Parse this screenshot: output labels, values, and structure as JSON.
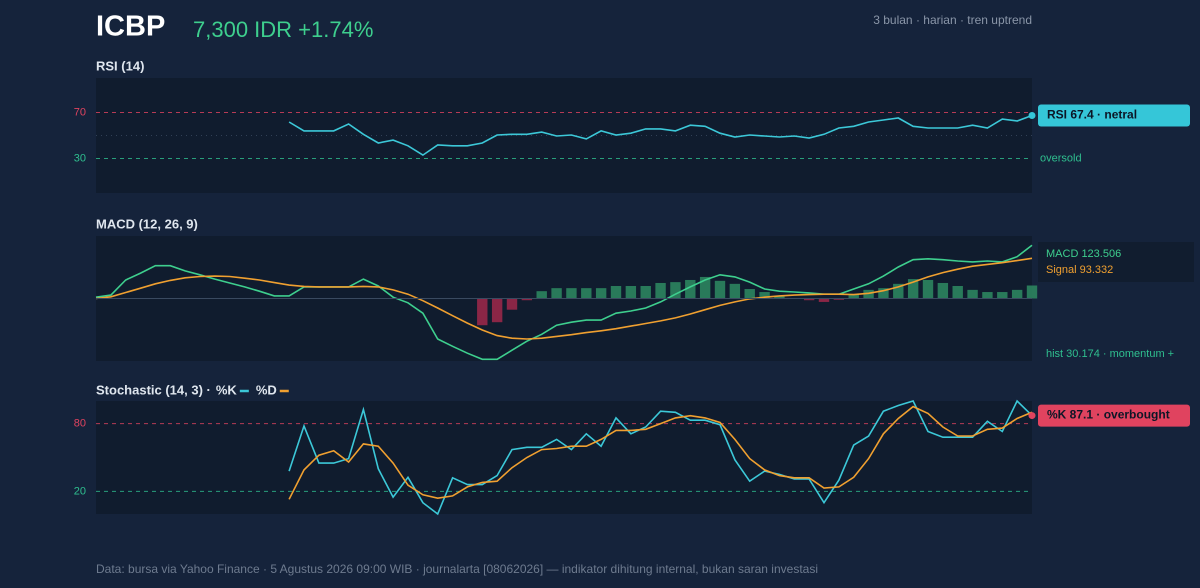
{
  "header": {
    "ticker": "ICBP",
    "price": "7,300 IDR +1.74%",
    "meta": "3 bulan · harian · tren uptrend"
  },
  "footer": "Data: bursa via Yahoo Finance · 5 Agustus 2026 09:00 WIB · journalarta [08062026] — indikator dihitung internal, bukan saran investasi",
  "chart_data": [
    {
      "type": "line",
      "title": "RSI (14)",
      "ylim": [
        0,
        100
      ],
      "yticks": [
        30,
        70
      ],
      "ytick_colors": [
        "#2fbf8f",
        "#e0435f"
      ],
      "reference_lines": [
        {
          "value": 70,
          "color": "#e0435f",
          "dash": "4 4"
        },
        {
          "value": 50,
          "color": "#3a4a60",
          "dash": "1 4"
        },
        {
          "value": 30,
          "color": "#2fbf8f",
          "dash": "4 4"
        }
      ],
      "annotation": {
        "text": "oversold",
        "value": 30,
        "color": "#2fbf8f"
      },
      "badge": {
        "text": "RSI 67.4 · netral",
        "color": "#35c6d8"
      },
      "series": [
        {
          "name": "RSI",
          "color": "#3cc8d8",
          "values": [
            null,
            null,
            null,
            null,
            null,
            null,
            null,
            null,
            null,
            null,
            null,
            null,
            null,
            61.7,
            54,
            54,
            54,
            60,
            51,
            43.5,
            46,
            41,
            33,
            41.7,
            41,
            41,
            43.5,
            50.4,
            51,
            51,
            53,
            49.6,
            50.4,
            47,
            54,
            50.4,
            52,
            55.7,
            55.7,
            54,
            59,
            58,
            52,
            48.7,
            50.4,
            49.6,
            48.7,
            49.6,
            47.8,
            51,
            56.5,
            58,
            61.7,
            63.5,
            65.2,
            58,
            56.5,
            56.5,
            56.5,
            59,
            56.5,
            64.3,
            62.6,
            67.4
          ]
        }
      ]
    },
    {
      "type": "line",
      "title": "MACD (12, 26, 9)",
      "ylim": [
        -145,
        145
      ],
      "info_box": [
        "MACD 123.506",
        "Signal 93.332"
      ],
      "note": {
        "text": "hist 30.174 · momentum +",
        "color": "#2fbf8f"
      },
      "positive_color": "#2e8b62",
      "negative_color": "#a0284a",
      "series": [
        {
          "name": "Histogram",
          "type": "bar",
          "values": [
            null,
            null,
            null,
            null,
            null,
            null,
            null,
            null,
            null,
            null,
            null,
            null,
            null,
            null,
            null,
            null,
            null,
            null,
            null,
            null,
            null,
            null,
            null,
            null,
            null,
            null,
            -62,
            -55,
            -26,
            -4,
            17,
            24,
            24,
            24,
            24,
            29,
            29,
            29,
            36,
            38,
            43,
            50,
            41,
            34,
            22,
            15,
            6,
            1,
            -4,
            -8,
            -3,
            10,
            20,
            24,
            34,
            45,
            43,
            36,
            29,
            20,
            15,
            15,
            20,
            30.174
          ]
        },
        {
          "name": "MACD",
          "color": "#3ecf8e",
          "values": [
            3,
            8,
            43,
            59,
            76,
            76,
            64,
            55,
            45,
            36,
            27,
            17,
            6,
            6,
            27,
            27,
            27,
            27,
            45,
            29,
            3,
            -10,
            -34,
            -94,
            -111,
            -127,
            -141,
            -141,
            -120,
            -99,
            -83,
            -62,
            -55,
            -50,
            -50,
            -34,
            -29,
            -22,
            -8,
            10,
            27,
            43,
            55,
            50,
            38,
            22,
            17,
            15,
            13,
            10,
            10,
            22,
            34,
            52,
            73,
            90,
            92,
            90,
            87,
            85,
            87,
            85,
            97,
            123.506
          ]
        },
        {
          "name": "Signal",
          "color": "#f0a030",
          "values": [
            0,
            4,
            14,
            24,
            34,
            42,
            48,
            51,
            52,
            51,
            47,
            43,
            37,
            31,
            28,
            27,
            27,
            27,
            28,
            27,
            20,
            10,
            -5,
            -22,
            -40,
            -57,
            -73,
            -86,
            -92,
            -94,
            -92,
            -88,
            -84,
            -79,
            -75,
            -70,
            -64,
            -58,
            -52,
            -45,
            -36,
            -26,
            -16,
            -8,
            -1,
            3,
            6,
            8,
            9,
            10,
            10,
            9,
            12,
            18,
            27,
            38,
            50,
            60,
            68,
            75,
            79,
            83,
            88,
            93.332
          ]
        }
      ]
    },
    {
      "type": "line",
      "title": "Stochastic (14, 3) ·",
      "ylim": [
        0,
        100
      ],
      "yticks": [
        20,
        80
      ],
      "ytick_colors": [
        "#2fbf8f",
        "#e0435f"
      ],
      "legend": "inline",
      "reference_lines": [
        {
          "value": 80,
          "color": "#e0435f",
          "dash": "4 4"
        },
        {
          "value": 20,
          "color": "#2fbf8f",
          "dash": "4 4"
        }
      ],
      "badge": {
        "text": "%K 87.1 · overbought",
        "color": "#e0435f"
      },
      "series": [
        {
          "name": "%K",
          "color": "#3cc8d8",
          "values": [
            null,
            null,
            null,
            null,
            null,
            null,
            null,
            null,
            null,
            null,
            null,
            null,
            null,
            38,
            78,
            45,
            45,
            49,
            92.5,
            40,
            15,
            32.5,
            10,
            0,
            32,
            26,
            26,
            34,
            57,
            59,
            59,
            66,
            57,
            71,
            60,
            85,
            71,
            77,
            91,
            90,
            83,
            83,
            79,
            48,
            29,
            38,
            35,
            31,
            31,
            10,
            30,
            61,
            69,
            91,
            96,
            100,
            73,
            68,
            68,
            68,
            82,
            73,
            100,
            87.1
          ]
        },
        {
          "name": "%D",
          "color": "#f0a030",
          "values": [
            null,
            null,
            null,
            null,
            null,
            null,
            null,
            null,
            null,
            null,
            null,
            null,
            null,
            13,
            39,
            52,
            56,
            46,
            62,
            60,
            45,
            25.5,
            17,
            14,
            16,
            24,
            28,
            29,
            41,
            50,
            57,
            58,
            60,
            60,
            66,
            74,
            74,
            75,
            80,
            85,
            87,
            85,
            81,
            66,
            49,
            39,
            34,
            32,
            32,
            23,
            24,
            32.5,
            49,
            71,
            84.5,
            95,
            89,
            77,
            69,
            69,
            75,
            76,
            84.5,
            90
          ]
        }
      ]
    }
  ]
}
